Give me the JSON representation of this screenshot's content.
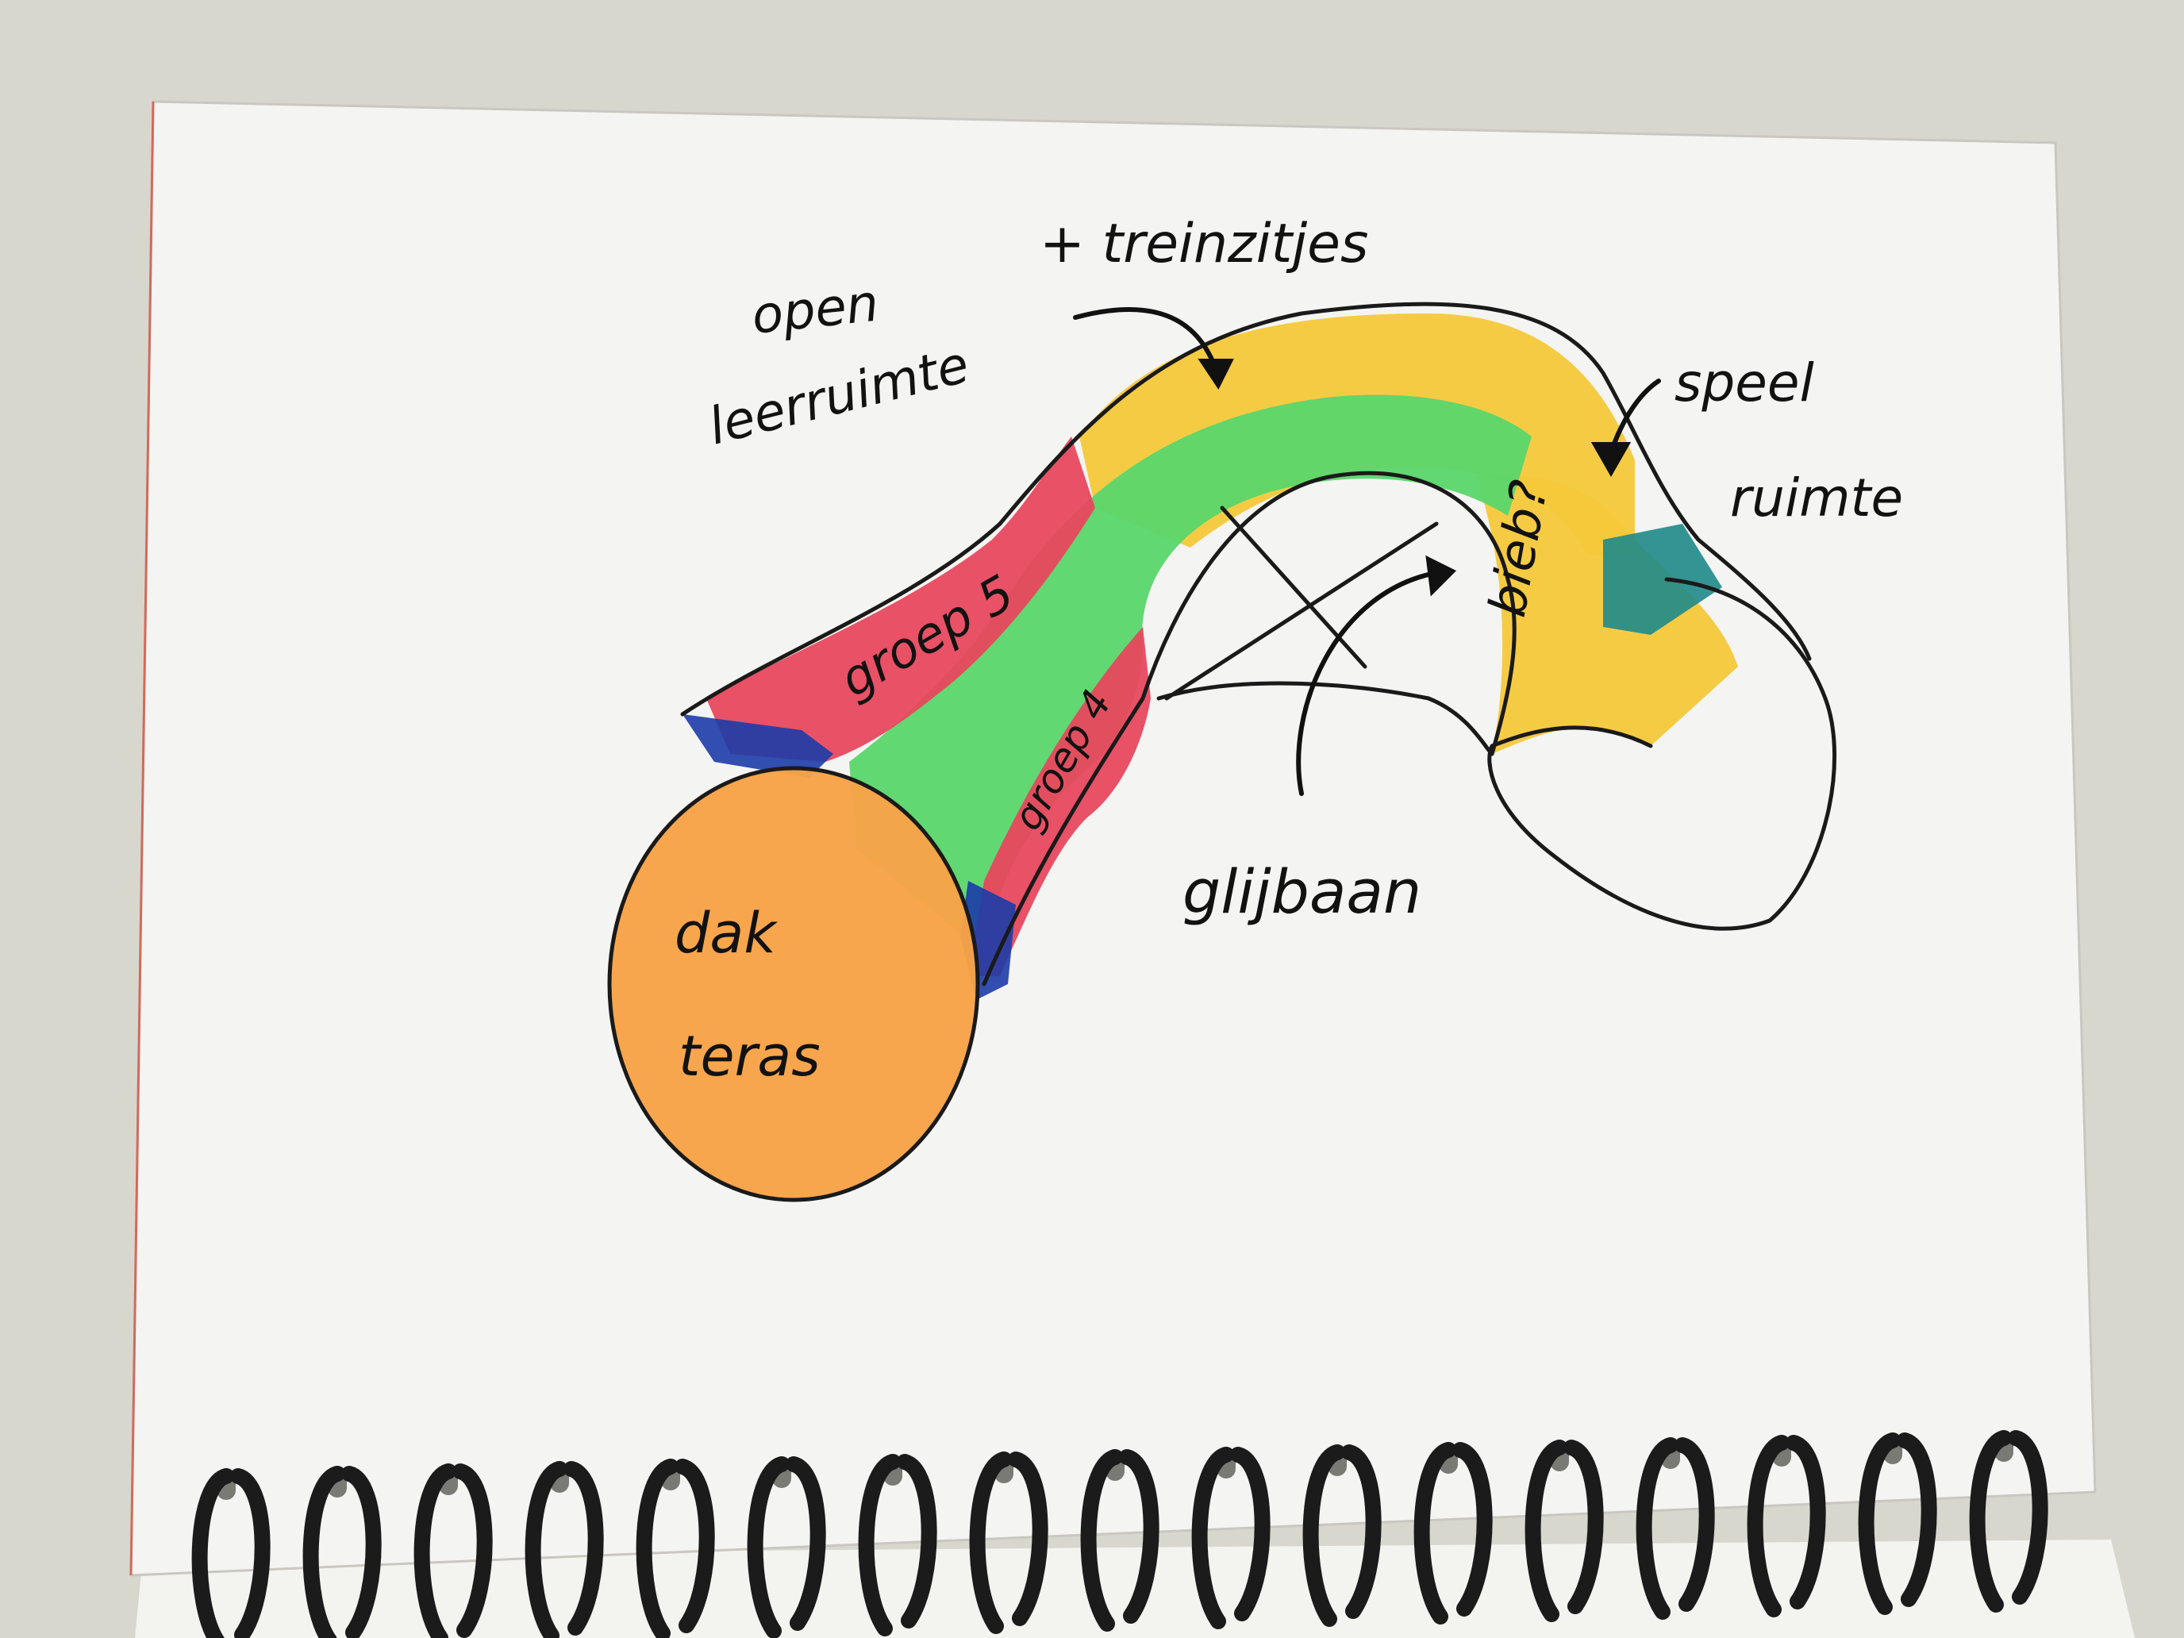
{
  "sketch": {
    "labels": {
      "open_leerruimte": "open\nleerruimte",
      "treinzitjes": "+ treinzitjes",
      "speelruimte": "speel\nruimte",
      "groep5": "groep 5",
      "groep4": "groep 4",
      "bieb": "bieb?",
      "dakterras": "dak\nteras",
      "glijbaan": "glijbaan"
    },
    "zone_colors": {
      "dakterras": "#f7a347",
      "groep5": "#e8485e",
      "groep4": "#e8485e",
      "open_leerruimte": "#5ad66a",
      "treinzitjes": "#f5c83a",
      "bieb": "#f5c83a",
      "speelruimte": "#1f8a8a",
      "entrance": "#1c3ca8"
    },
    "icons": [
      "pen-outline",
      "arrow",
      "cross-x",
      "spiral-binding"
    ]
  }
}
